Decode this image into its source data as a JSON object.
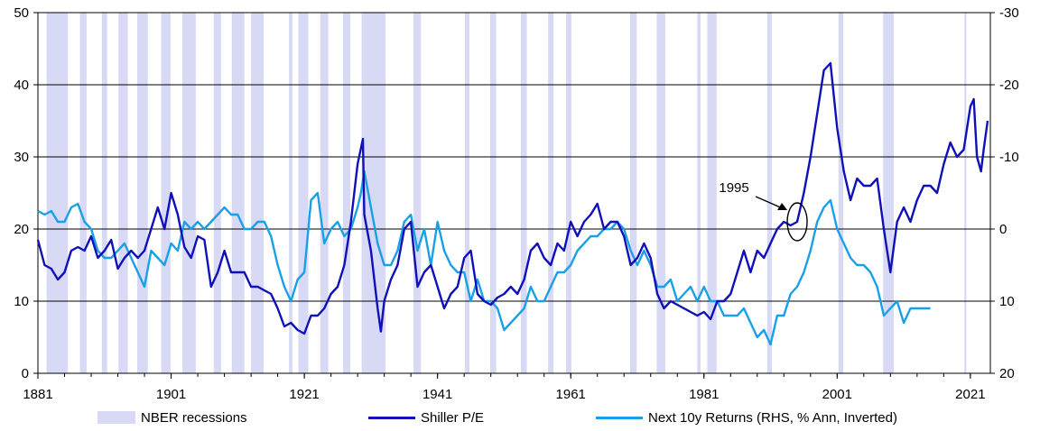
{
  "colors": {
    "recession": "#d7d9f5",
    "pe": "#1010b8",
    "returns": "#1aa0e6",
    "grid": "#000000"
  },
  "chart_data": {
    "type": "line",
    "title": "",
    "left_axis": {
      "ylim": [
        0,
        50
      ],
      "ticks": [
        "0",
        "10",
        "20",
        "30",
        "40",
        "50"
      ]
    },
    "right_axis": {
      "ylim": [
        20,
        -30
      ],
      "inverted": true,
      "ticks": [
        "20",
        "10",
        "0",
        "-10",
        "-20",
        "-30"
      ]
    },
    "x_axis": {
      "xlim": [
        1881,
        2024
      ],
      "ticks": [
        "1881",
        "1901",
        "1921",
        "1941",
        "1961",
        "1981",
        "2001",
        "2021"
      ]
    },
    "grid": "horizontal",
    "recessions": [
      [
        1882.3,
        1885.5
      ],
      [
        1887.3,
        1888.3
      ],
      [
        1890.6,
        1891.4
      ],
      [
        1893.1,
        1894.5
      ],
      [
        1895.9,
        1897.5
      ],
      [
        1899.5,
        1900.9
      ],
      [
        1902.7,
        1904.7
      ],
      [
        1907.4,
        1908.5
      ],
      [
        1910.1,
        1912.0
      ],
      [
        1913.0,
        1914.9
      ],
      [
        1918.7,
        1919.2
      ],
      [
        1920.1,
        1921.6
      ],
      [
        1923.4,
        1924.6
      ],
      [
        1926.8,
        1927.9
      ],
      [
        1929.6,
        1933.2
      ],
      [
        1937.4,
        1938.5
      ],
      [
        1945.1,
        1945.8
      ],
      [
        1948.9,
        1949.8
      ],
      [
        1953.5,
        1954.4
      ],
      [
        1957.6,
        1958.4
      ],
      [
        1960.3,
        1961.1
      ],
      [
        1969.9,
        1970.9
      ],
      [
        1973.9,
        1975.2
      ],
      [
        1980.0,
        1980.5
      ],
      [
        1981.5,
        1982.9
      ],
      [
        1990.5,
        1991.2
      ],
      [
        2001.2,
        2001.9
      ],
      [
        2007.9,
        2009.5
      ],
      [
        2020.1,
        2020.4
      ]
    ],
    "series": [
      {
        "name": "Shiller P/E",
        "axis": "left",
        "points": [
          [
            1881,
            18.5
          ],
          [
            1882,
            15
          ],
          [
            1883,
            14.5
          ],
          [
            1884,
            13
          ],
          [
            1885,
            14
          ],
          [
            1886,
            17
          ],
          [
            1887,
            17.5
          ],
          [
            1888,
            17
          ],
          [
            1889,
            19
          ],
          [
            1890,
            16
          ],
          [
            1891,
            17
          ],
          [
            1892,
            18.5
          ],
          [
            1893,
            14.5
          ],
          [
            1894,
            16
          ],
          [
            1895,
            17
          ],
          [
            1896,
            16
          ],
          [
            1897,
            17
          ],
          [
            1898,
            20
          ],
          [
            1899,
            23
          ],
          [
            1900,
            20
          ],
          [
            1901,
            25
          ],
          [
            1902,
            22
          ],
          [
            1903,
            17.5
          ],
          [
            1904,
            16
          ],
          [
            1905,
            19
          ],
          [
            1906,
            18.5
          ],
          [
            1907,
            12
          ],
          [
            1908,
            14
          ],
          [
            1909,
            17
          ],
          [
            1910,
            14
          ],
          [
            1911,
            14
          ],
          [
            1912,
            14
          ],
          [
            1913,
            12
          ],
          [
            1914,
            12
          ],
          [
            1915,
            11.5
          ],
          [
            1916,
            11
          ],
          [
            1917,
            9
          ],
          [
            1918,
            6.5
          ],
          [
            1919,
            7
          ],
          [
            1920,
            6
          ],
          [
            1921,
            5.5
          ],
          [
            1922,
            8
          ],
          [
            1923,
            8
          ],
          [
            1924,
            9
          ],
          [
            1925,
            11
          ],
          [
            1926,
            12
          ],
          [
            1927,
            15
          ],
          [
            1928,
            21
          ],
          [
            1929,
            29
          ],
          [
            1929.8,
            32.5
          ],
          [
            1930,
            22
          ],
          [
            1931,
            17
          ],
          [
            1932,
            9
          ],
          [
            1932.5,
            5.8
          ],
          [
            1933,
            10
          ],
          [
            1934,
            13
          ],
          [
            1935,
            15
          ],
          [
            1936,
            20
          ],
          [
            1937,
            21
          ],
          [
            1938,
            12
          ],
          [
            1939,
            14
          ],
          [
            1940,
            15
          ],
          [
            1941,
            12
          ],
          [
            1942,
            9
          ],
          [
            1943,
            11
          ],
          [
            1944,
            12
          ],
          [
            1945,
            16
          ],
          [
            1946,
            17
          ],
          [
            1947,
            11
          ],
          [
            1948,
            10
          ],
          [
            1949,
            9.5
          ],
          [
            1950,
            10.5
          ],
          [
            1951,
            11
          ],
          [
            1952,
            12
          ],
          [
            1953,
            11
          ],
          [
            1954,
            13
          ],
          [
            1955,
            17
          ],
          [
            1956,
            18
          ],
          [
            1957,
            16
          ],
          [
            1958,
            15
          ],
          [
            1959,
            18
          ],
          [
            1960,
            17
          ],
          [
            1961,
            21
          ],
          [
            1962,
            19
          ],
          [
            1963,
            21
          ],
          [
            1964,
            22
          ],
          [
            1965,
            23.5
          ],
          [
            1966,
            20
          ],
          [
            1967,
            21
          ],
          [
            1968,
            21
          ],
          [
            1969,
            19
          ],
          [
            1970,
            15
          ],
          [
            1971,
            16
          ],
          [
            1972,
            18
          ],
          [
            1973,
            16
          ],
          [
            1974,
            11
          ],
          [
            1975,
            9
          ],
          [
            1976,
            10
          ],
          [
            1977,
            9.5
          ],
          [
            1978,
            9
          ],
          [
            1979,
            8.5
          ],
          [
            1980,
            8
          ],
          [
            1981,
            8.5
          ],
          [
            1982,
            7.5
          ],
          [
            1983,
            10
          ],
          [
            1984,
            10
          ],
          [
            1985,
            11
          ],
          [
            1986,
            14
          ],
          [
            1987,
            17
          ],
          [
            1988,
            14
          ],
          [
            1989,
            17
          ],
          [
            1990,
            16
          ],
          [
            1991,
            18
          ],
          [
            1992,
            20
          ],
          [
            1993,
            21
          ],
          [
            1994,
            20.5
          ],
          [
            1995,
            21
          ],
          [
            1996,
            25
          ],
          [
            1997,
            30
          ],
          [
            1998,
            36
          ],
          [
            1999,
            42
          ],
          [
            2000,
            43
          ],
          [
            2001,
            34
          ],
          [
            2002,
            28
          ],
          [
            2003,
            24
          ],
          [
            2004,
            27
          ],
          [
            2005,
            26
          ],
          [
            2006,
            26
          ],
          [
            2007,
            27
          ],
          [
            2008,
            20
          ],
          [
            2009,
            14
          ],
          [
            2010,
            21
          ],
          [
            2011,
            23
          ],
          [
            2012,
            21
          ],
          [
            2013,
            24
          ],
          [
            2014,
            26
          ],
          [
            2015,
            26
          ],
          [
            2016,
            25
          ],
          [
            2017,
            29
          ],
          [
            2018,
            32
          ],
          [
            2019,
            30
          ],
          [
            2020,
            31
          ],
          [
            2021,
            37
          ],
          [
            2021.5,
            38
          ],
          [
            2022,
            30
          ],
          [
            2022.6,
            28
          ],
          [
            2023,
            31
          ],
          [
            2023.6,
            35
          ]
        ]
      },
      {
        "name": "Next 10y Returns (RHS, % Ann, Inverted)",
        "axis": "right",
        "points": [
          [
            1881,
            -2.5
          ],
          [
            1882,
            -2
          ],
          [
            1883,
            -2.5
          ],
          [
            1884,
            -1
          ],
          [
            1885,
            -1
          ],
          [
            1886,
            -3
          ],
          [
            1887,
            -3.5
          ],
          [
            1888,
            -1
          ],
          [
            1889,
            0
          ],
          [
            1890,
            3
          ],
          [
            1891,
            4
          ],
          [
            1892,
            4
          ],
          [
            1893,
            3
          ],
          [
            1894,
            2
          ],
          [
            1895,
            4
          ],
          [
            1896,
            6
          ],
          [
            1897,
            8
          ],
          [
            1898,
            3
          ],
          [
            1899,
            4
          ],
          [
            1900,
            5
          ],
          [
            1901,
            2
          ],
          [
            1902,
            3
          ],
          [
            1903,
            -1
          ],
          [
            1904,
            0
          ],
          [
            1905,
            -1
          ],
          [
            1906,
            0
          ],
          [
            1907,
            -1
          ],
          [
            1908,
            -2
          ],
          [
            1909,
            -3
          ],
          [
            1910,
            -2
          ],
          [
            1911,
            -2
          ],
          [
            1912,
            0
          ],
          [
            1913,
            0
          ],
          [
            1914,
            -1
          ],
          [
            1915,
            -1
          ],
          [
            1916,
            1
          ],
          [
            1917,
            5
          ],
          [
            1918,
            8
          ],
          [
            1919,
            10
          ],
          [
            1920,
            7
          ],
          [
            1921,
            6
          ],
          [
            1922,
            -4
          ],
          [
            1923,
            -5
          ],
          [
            1924,
            2
          ],
          [
            1925,
            0
          ],
          [
            1926,
            -1
          ],
          [
            1927,
            1
          ],
          [
            1928,
            0
          ],
          [
            1929,
            -3
          ],
          [
            1929.5,
            -5
          ],
          [
            1930,
            -8
          ],
          [
            1931,
            -3
          ],
          [
            1932,
            2
          ],
          [
            1933,
            5
          ],
          [
            1934,
            5
          ],
          [
            1935,
            3
          ],
          [
            1936,
            -1
          ],
          [
            1937,
            -2
          ],
          [
            1938,
            3
          ],
          [
            1939,
            0
          ],
          [
            1940,
            5
          ],
          [
            1941,
            -1
          ],
          [
            1942,
            3
          ],
          [
            1943,
            5
          ],
          [
            1944,
            6
          ],
          [
            1945,
            6
          ],
          [
            1946,
            10
          ],
          [
            1947,
            7
          ],
          [
            1948,
            10
          ],
          [
            1949,
            10
          ],
          [
            1950,
            11
          ],
          [
            1951,
            14
          ],
          [
            1952,
            13
          ],
          [
            1953,
            12
          ],
          [
            1954,
            11
          ],
          [
            1955,
            8
          ],
          [
            1956,
            10
          ],
          [
            1957,
            10
          ],
          [
            1958,
            8
          ],
          [
            1959,
            6
          ],
          [
            1960,
            6
          ],
          [
            1961,
            5
          ],
          [
            1962,
            3
          ],
          [
            1963,
            2
          ],
          [
            1964,
            1
          ],
          [
            1965,
            1
          ],
          [
            1966,
            0
          ],
          [
            1967,
            0
          ],
          [
            1968,
            -1
          ],
          [
            1969,
            0
          ],
          [
            1970,
            3
          ],
          [
            1971,
            5
          ],
          [
            1972,
            3
          ],
          [
            1973,
            5
          ],
          [
            1974,
            8
          ],
          [
            1975,
            8
          ],
          [
            1976,
            7
          ],
          [
            1977,
            10
          ],
          [
            1978,
            9
          ],
          [
            1979,
            8
          ],
          [
            1980,
            10
          ],
          [
            1981,
            8
          ],
          [
            1982,
            10
          ],
          [
            1983,
            10
          ],
          [
            1984,
            12
          ],
          [
            1985,
            12
          ],
          [
            1986,
            12
          ],
          [
            1987,
            11
          ],
          [
            1988,
            13
          ],
          [
            1989,
            15
          ],
          [
            1990,
            14
          ],
          [
            1991,
            16
          ],
          [
            1992,
            12
          ],
          [
            1993,
            12
          ],
          [
            1994,
            9
          ],
          [
            1995,
            8
          ],
          [
            1996,
            6
          ],
          [
            1997,
            3
          ],
          [
            1998,
            -1
          ],
          [
            1999,
            -3
          ],
          [
            2000,
            -4
          ],
          [
            2001,
            0
          ],
          [
            2002,
            2
          ],
          [
            2003,
            4
          ],
          [
            2004,
            5
          ],
          [
            2005,
            5
          ],
          [
            2006,
            6
          ],
          [
            2007,
            8
          ],
          [
            2008,
            12
          ],
          [
            2009,
            11
          ],
          [
            2010,
            10
          ],
          [
            2011,
            13
          ],
          [
            2012,
            11
          ],
          [
            2013,
            11
          ],
          [
            2014,
            11
          ],
          [
            2015,
            11
          ]
        ]
      }
    ],
    "annotation": {
      "text": "1995",
      "x": 1995,
      "y": 21
    },
    "legend": [
      {
        "label": "NBER recessions",
        "kind": "area"
      },
      {
        "label": "Shiller P/E",
        "kind": "line"
      },
      {
        "label": "Next 10y Returns (RHS, % Ann, Inverted)",
        "kind": "line"
      }
    ]
  }
}
